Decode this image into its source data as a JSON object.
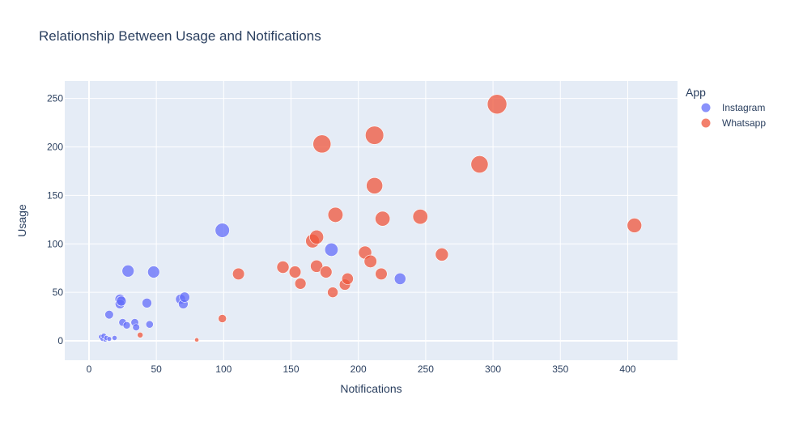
{
  "chart_data": {
    "type": "scatter",
    "title": "Relationship Between Usage and Notifications",
    "xlabel": "Notifications",
    "ylabel": "Usage",
    "xlim": [
      -18,
      437
    ],
    "ylim": [
      -20,
      268
    ],
    "xticks": [
      0,
      50,
      100,
      150,
      200,
      250,
      300,
      350,
      400
    ],
    "yticks": [
      0,
      50,
      100,
      150,
      200,
      250
    ],
    "grid": true,
    "legend": {
      "title": "App",
      "placement": "right"
    },
    "colors": {
      "plot_bg": "#e5ecf6",
      "grid": "#ffffff",
      "text": "#2a3f5f"
    },
    "series": [
      {
        "name": "Instagram",
        "color": "#636efa",
        "points": [
          {
            "x": 9,
            "y": 4
          },
          {
            "x": 10,
            "y": 2
          },
          {
            "x": 11,
            "y": 5
          },
          {
            "x": 12,
            "y": 1
          },
          {
            "x": 13,
            "y": 3
          },
          {
            "x": 15,
            "y": 2
          },
          {
            "x": 15,
            "y": 27
          },
          {
            "x": 19,
            "y": 3
          },
          {
            "x": 23,
            "y": 43
          },
          {
            "x": 23,
            "y": 38
          },
          {
            "x": 24,
            "y": 41
          },
          {
            "x": 25,
            "y": 19
          },
          {
            "x": 28,
            "y": 16
          },
          {
            "x": 29,
            "y": 72
          },
          {
            "x": 34,
            "y": 19
          },
          {
            "x": 35,
            "y": 14
          },
          {
            "x": 43,
            "y": 39
          },
          {
            "x": 45,
            "y": 17
          },
          {
            "x": 48,
            "y": 71
          },
          {
            "x": 68,
            "y": 43
          },
          {
            "x": 70,
            "y": 38
          },
          {
            "x": 71,
            "y": 45
          },
          {
            "x": 99,
            "y": 114
          },
          {
            "x": 180,
            "y": 94
          },
          {
            "x": 231,
            "y": 64
          }
        ]
      },
      {
        "name": "Whatsapp",
        "color": "#ef553b",
        "points": [
          {
            "x": 38,
            "y": 6
          },
          {
            "x": 80,
            "y": 1
          },
          {
            "x": 99,
            "y": 23
          },
          {
            "x": 111,
            "y": 69
          },
          {
            "x": 144,
            "y": 76
          },
          {
            "x": 153,
            "y": 71
          },
          {
            "x": 157,
            "y": 59
          },
          {
            "x": 166,
            "y": 103
          },
          {
            "x": 169,
            "y": 107
          },
          {
            "x": 169,
            "y": 77
          },
          {
            "x": 173,
            "y": 203
          },
          {
            "x": 176,
            "y": 71
          },
          {
            "x": 181,
            "y": 50
          },
          {
            "x": 183,
            "y": 130
          },
          {
            "x": 190,
            "y": 58
          },
          {
            "x": 192,
            "y": 64
          },
          {
            "x": 205,
            "y": 91
          },
          {
            "x": 209,
            "y": 82
          },
          {
            "x": 212,
            "y": 212
          },
          {
            "x": 212,
            "y": 160
          },
          {
            "x": 217,
            "y": 69
          },
          {
            "x": 218,
            "y": 126
          },
          {
            "x": 246,
            "y": 128
          },
          {
            "x": 262,
            "y": 89
          },
          {
            "x": 290,
            "y": 182
          },
          {
            "x": 303,
            "y": 244
          },
          {
            "x": 405,
            "y": 119
          }
        ]
      }
    ]
  }
}
